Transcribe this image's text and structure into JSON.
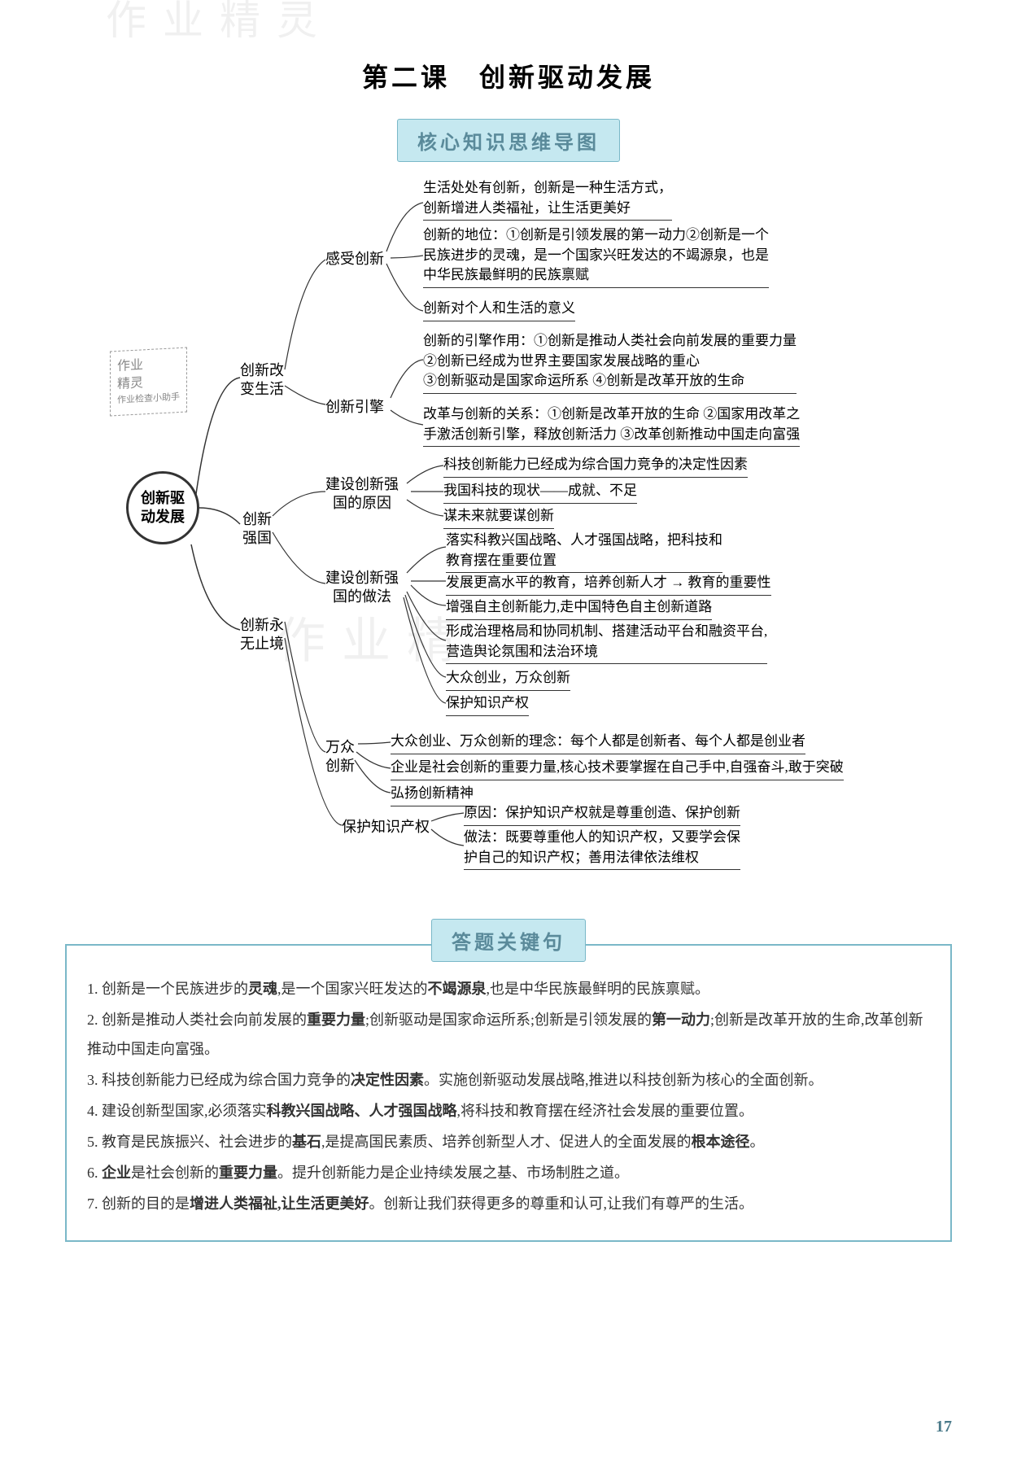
{
  "title": "第二课　创新驱动发展",
  "sectionBanner": "核心知识思维导图",
  "root": "创新驱\n动发展",
  "watermark": {
    "line1": "作业",
    "line2": "精灵",
    "small": "作业检查小助手"
  },
  "branches": {
    "b1": "创新改\n变生活",
    "b1a": "感受创新",
    "b1b": "创新引擎",
    "b2": "创新\n强国",
    "b2a": "建设创新强\n国的原因",
    "b2b": "建设创新强\n国的做法",
    "b3": "创新永\n无止境",
    "b3a": "万众\n创新",
    "b3b": "保护知识产权"
  },
  "leaves": {
    "l1": "生活处处有创新，创新是一种生活方式，\n创新增进人类福祉，让生活更美好",
    "l2": "创新的地位：①创新是引领发展的第一动力②创新是一个\n民族进步的灵魂，是一个国家兴旺发达的不竭源泉，也是\n中华民族最鲜明的民族禀赋",
    "l3": "创新对个人和生活的意义",
    "l4": "创新的引擎作用：①创新是推动人类社会向前发展的重要力量\n②创新已经成为世界主要国家发展战略的重心\n③创新驱动是国家命运所系 ④创新是改革开放的生命",
    "l5": "改革与创新的关系：①创新是改革开放的生命 ②国家用改革之\n手激活创新引擎，释放创新活力 ③改革创新推动中国走向富强",
    "l6": "科技创新能力已经成为综合国力竞争的决定性因素",
    "l7": "我国科技的现状——成就、不足",
    "l8": "谋未来就要谋创新",
    "l9": "落实科教兴国战略、人才强国战略，把科技和\n教育摆在重要位置",
    "l10": "发展更高水平的教育，培养创新人才 → 教育的重要性",
    "l11": "增强自主创新能力,走中国特色自主创新道路",
    "l12": "形成治理格局和协同机制、搭建活动平台和融资平台,\n营造舆论氛围和法治环境",
    "l13": "大众创业，万众创新",
    "l14": "保护知识产权",
    "l15": "大众创业、万众创新的理念：每个人都是创新者、每个人都是创业者",
    "l16": "企业是社会创新的重要力量,核心技术要掌握在自己手中,自强奋斗,敢于突破",
    "l17": "弘扬创新精神",
    "l18": "原因：保护知识产权就是尊重创造、保护创新",
    "l19": "做法：既要尊重他人的知识产权，又要学会保\n护自己的知识产权；善用法律依法维权"
  },
  "answerBanner": "答题关键句",
  "answers": [
    "1. 创新是一个民族进步的<b>灵魂</b>,是一个国家兴旺发达的<b>不竭源泉</b>,也是中华民族最鲜明的民族禀赋。",
    "2. 创新是推动人类社会向前发展的<b>重要力量</b>;创新驱动是国家命运所系;创新是引领发展的<b>第一动力</b>;创新是改革开放的生命,改革创新推动中国走向富强。",
    "3. 科技创新能力已经成为综合国力竞争的<b>决定性因素</b>。实施创新驱动发展战略,推进以科技创新为核心的全面创新。",
    "4. 建设创新型国家,必须落实<b>科教兴国战略、人才强国战略</b>,将科技和教育摆在经济社会发展的重要位置。",
    "5. 教育是民族振兴、社会进步的<b>基石</b>,是提高国民素质、培养创新型人才、促进人的全面发展的<b>根本途径</b>。",
    "6. <b>企业</b>是社会创新的<b>重要力量</b>。提升创新能力是企业持续发展之基、市场制胜之道。",
    "7. 创新的目的是<b>增进人类福祉,让生活更美好</b>。创新让我们获得更多的尊重和认可,让我们有尊严的生活。"
  ],
  "pageNum": "17",
  "wmCenter1": "作业精",
  "wmCenter2": "作业精灵"
}
